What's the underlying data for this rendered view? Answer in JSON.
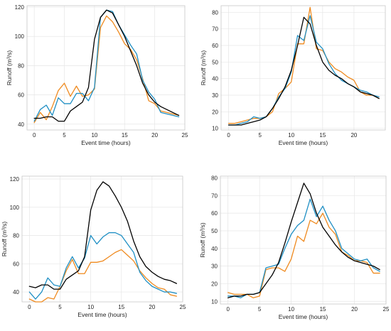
{
  "colors": {
    "black": "#000000",
    "blue": "#1f8fc4",
    "orange": "#ef8a1f"
  },
  "chart_data": [
    {
      "type": "line",
      "title": "",
      "xlabel": "Event time (hours)",
      "ylabel": "Runoff (m³/s)",
      "xlim": [
        -1.2,
        25
      ],
      "ylim": [
        36,
        121
      ],
      "xticks": [
        0,
        5,
        10,
        15,
        20,
        25
      ],
      "yticks": [
        40,
        60,
        80,
        100,
        120
      ],
      "grid": true,
      "series": [
        {
          "color": "#000000",
          "x": [
            0,
            1,
            2,
            3,
            4,
            5,
            6,
            7,
            8,
            9,
            10,
            11,
            12,
            13,
            14,
            15,
            16,
            17,
            18,
            19,
            20,
            21,
            22,
            23,
            24
          ],
          "values": [
            44,
            44,
            45,
            45,
            42,
            42,
            49,
            52,
            55,
            65,
            98,
            113,
            118,
            116,
            108,
            100,
            90,
            80,
            68,
            60,
            55,
            52,
            50,
            48,
            46
          ]
        },
        {
          "color": "#1f8fc4",
          "x": [
            0,
            1,
            2,
            3,
            4,
            5,
            6,
            7,
            8,
            9,
            10,
            11,
            12,
            13,
            14,
            15,
            16,
            17,
            18,
            19,
            20,
            21,
            22,
            23,
            24
          ],
          "values": [
            42,
            50,
            53,
            46,
            58,
            54,
            54,
            61,
            61,
            56,
            65,
            113,
            118,
            117,
            108,
            101,
            94,
            88,
            70,
            62,
            57,
            48,
            47,
            46,
            45
          ]
        },
        {
          "color": "#ef8a1f",
          "x": [
            0,
            1,
            2,
            3,
            4,
            5,
            6,
            7,
            8,
            9,
            10,
            11,
            12,
            13,
            14,
            15,
            16,
            17,
            18,
            19,
            20,
            21,
            22,
            23,
            24
          ],
          "values": [
            41,
            48,
            43,
            52,
            63,
            68,
            59,
            66,
            59,
            60,
            64,
            106,
            114,
            110,
            103,
            95,
            91,
            84,
            71,
            56,
            54,
            49,
            48,
            47,
            46
          ]
        }
      ]
    },
    {
      "type": "line",
      "title": "",
      "xlabel": "Event time (hours)",
      "ylabel": "Runoff (m³/s)",
      "xlim": [
        -1.2,
        25
      ],
      "ylim": [
        9,
        84
      ],
      "xticks": [
        0,
        5,
        10,
        15,
        20
      ],
      "yticks": [
        10,
        20,
        30,
        40,
        50,
        60,
        70,
        80
      ],
      "grid": true,
      "series": [
        {
          "color": "#000000",
          "x": [
            0,
            1,
            2,
            3,
            4,
            5,
            6,
            7,
            8,
            9,
            10,
            11,
            12,
            13,
            14,
            15,
            16,
            17,
            18,
            19,
            20,
            21,
            22,
            23,
            24
          ],
          "values": [
            12,
            12,
            12,
            13,
            14,
            15,
            17,
            22,
            28,
            35,
            45,
            60,
            77,
            73,
            60,
            50,
            45,
            42,
            40,
            37,
            35,
            32,
            31,
            30,
            28
          ]
        },
        {
          "color": "#1f8fc4",
          "x": [
            0,
            1,
            2,
            3,
            4,
            5,
            6,
            7,
            8,
            9,
            10,
            11,
            12,
            13,
            14,
            15,
            16,
            17,
            18,
            19,
            20,
            21,
            22,
            23,
            24
          ],
          "values": [
            12,
            12,
            13,
            14,
            17,
            16,
            17,
            22,
            29,
            34,
            44,
            66,
            63,
            78,
            62,
            58,
            49,
            43,
            39,
            37,
            35,
            33,
            32,
            30,
            29
          ]
        },
        {
          "color": "#ef8a1f",
          "x": [
            0,
            1,
            2,
            3,
            4,
            5,
            6,
            7,
            8,
            9,
            10,
            11,
            12,
            13,
            14,
            15,
            16,
            17,
            18,
            19,
            20,
            21,
            22,
            23,
            24
          ],
          "values": [
            13,
            13,
            14,
            15,
            16,
            16,
            17,
            20,
            31,
            34,
            38,
            61,
            61,
            83,
            58,
            57,
            50,
            46,
            44,
            41,
            39,
            32,
            30,
            30,
            28
          ]
        }
      ]
    },
    {
      "type": "line",
      "title": "",
      "xlabel": "Event time (hours)",
      "ylabel": "Runoff (m³/s)",
      "xlim": [
        -1.2,
        25
      ],
      "ylim": [
        33,
        122
      ],
      "xticks": [
        0,
        5,
        10,
        15,
        20,
        25
      ],
      "yticks": [
        40,
        60,
        80,
        100,
        120
      ],
      "grid": true,
      "series": [
        {
          "color": "#000000",
          "x": [
            0,
            1,
            2,
            3,
            4,
            5,
            6,
            7,
            8,
            9,
            10,
            11,
            12,
            13,
            14,
            15,
            16,
            17,
            18,
            19,
            20,
            21,
            22,
            23,
            24
          ],
          "values": [
            44,
            43,
            45,
            45,
            42,
            42,
            49,
            52,
            55,
            65,
            98,
            112,
            118,
            115,
            108,
            100,
            90,
            76,
            65,
            58,
            54,
            51,
            49,
            48,
            46
          ]
        },
        {
          "color": "#1f8fc4",
          "x": [
            0,
            1,
            2,
            3,
            4,
            5,
            6,
            7,
            8,
            9,
            10,
            11,
            12,
            13,
            14,
            15,
            16,
            17,
            18,
            19,
            20,
            21,
            22,
            23,
            24
          ],
          "values": [
            40,
            35,
            40,
            50,
            45,
            44,
            57,
            65,
            57,
            64,
            80,
            74,
            79,
            82,
            82,
            80,
            74,
            68,
            54,
            48,
            44,
            42,
            40,
            40,
            39
          ]
        },
        {
          "color": "#ef8a1f",
          "x": [
            0,
            1,
            2,
            3,
            4,
            5,
            6,
            7,
            8,
            9,
            10,
            11,
            12,
            13,
            14,
            15,
            16,
            17,
            18,
            19,
            20,
            21,
            22,
            23,
            24
          ],
          "values": [
            35,
            33,
            33,
            36,
            35,
            44,
            55,
            63,
            53,
            53,
            61,
            61,
            62,
            65,
            68,
            70,
            66,
            62,
            55,
            50,
            46,
            43,
            42,
            38,
            37
          ]
        }
      ]
    },
    {
      "type": "line",
      "title": "",
      "xlabel": "Event time (hours)",
      "ylabel": "Runoff (m³/s)",
      "xlim": [
        -1.2,
        25
      ],
      "ylim": [
        8.5,
        81
      ],
      "xticks": [
        0,
        5,
        10,
        15,
        20,
        25
      ],
      "yticks": [
        10,
        20,
        30,
        40,
        50,
        60,
        70,
        80
      ],
      "grid": true,
      "series": [
        {
          "color": "#000000",
          "x": [
            0,
            1,
            2,
            3,
            4,
            5,
            6,
            7,
            8,
            9,
            10,
            11,
            12,
            13,
            14,
            15,
            16,
            17,
            18,
            19,
            20,
            21,
            22,
            23,
            24
          ],
          "values": [
            12,
            13,
            13,
            14,
            14,
            15,
            20,
            25,
            32,
            43,
            55,
            66,
            77,
            71,
            60,
            52,
            47,
            42,
            38,
            35,
            33,
            32,
            31,
            30,
            28
          ]
        },
        {
          "color": "#1f8fc4",
          "x": [
            0,
            1,
            2,
            3,
            4,
            5,
            6,
            7,
            8,
            9,
            10,
            11,
            12,
            13,
            14,
            15,
            16,
            17,
            18,
            19,
            20,
            21,
            22,
            23,
            24
          ],
          "values": [
            13,
            13,
            12,
            14,
            14,
            15,
            29,
            30,
            31,
            40,
            48,
            53,
            56,
            68,
            58,
            64,
            56,
            50,
            40,
            37,
            34,
            33,
            34,
            29,
            27
          ]
        },
        {
          "color": "#ef8a1f",
          "x": [
            0,
            1,
            2,
            3,
            4,
            5,
            6,
            7,
            8,
            9,
            10,
            11,
            12,
            13,
            14,
            15,
            16,
            17,
            18,
            19,
            20,
            21,
            22,
            23,
            24
          ],
          "values": [
            15,
            14,
            14,
            14,
            12,
            13,
            28,
            29,
            29,
            27,
            34,
            47,
            44,
            56,
            54,
            60,
            52,
            48,
            38,
            36,
            33,
            33,
            32,
            26,
            26
          ]
        }
      ]
    }
  ]
}
